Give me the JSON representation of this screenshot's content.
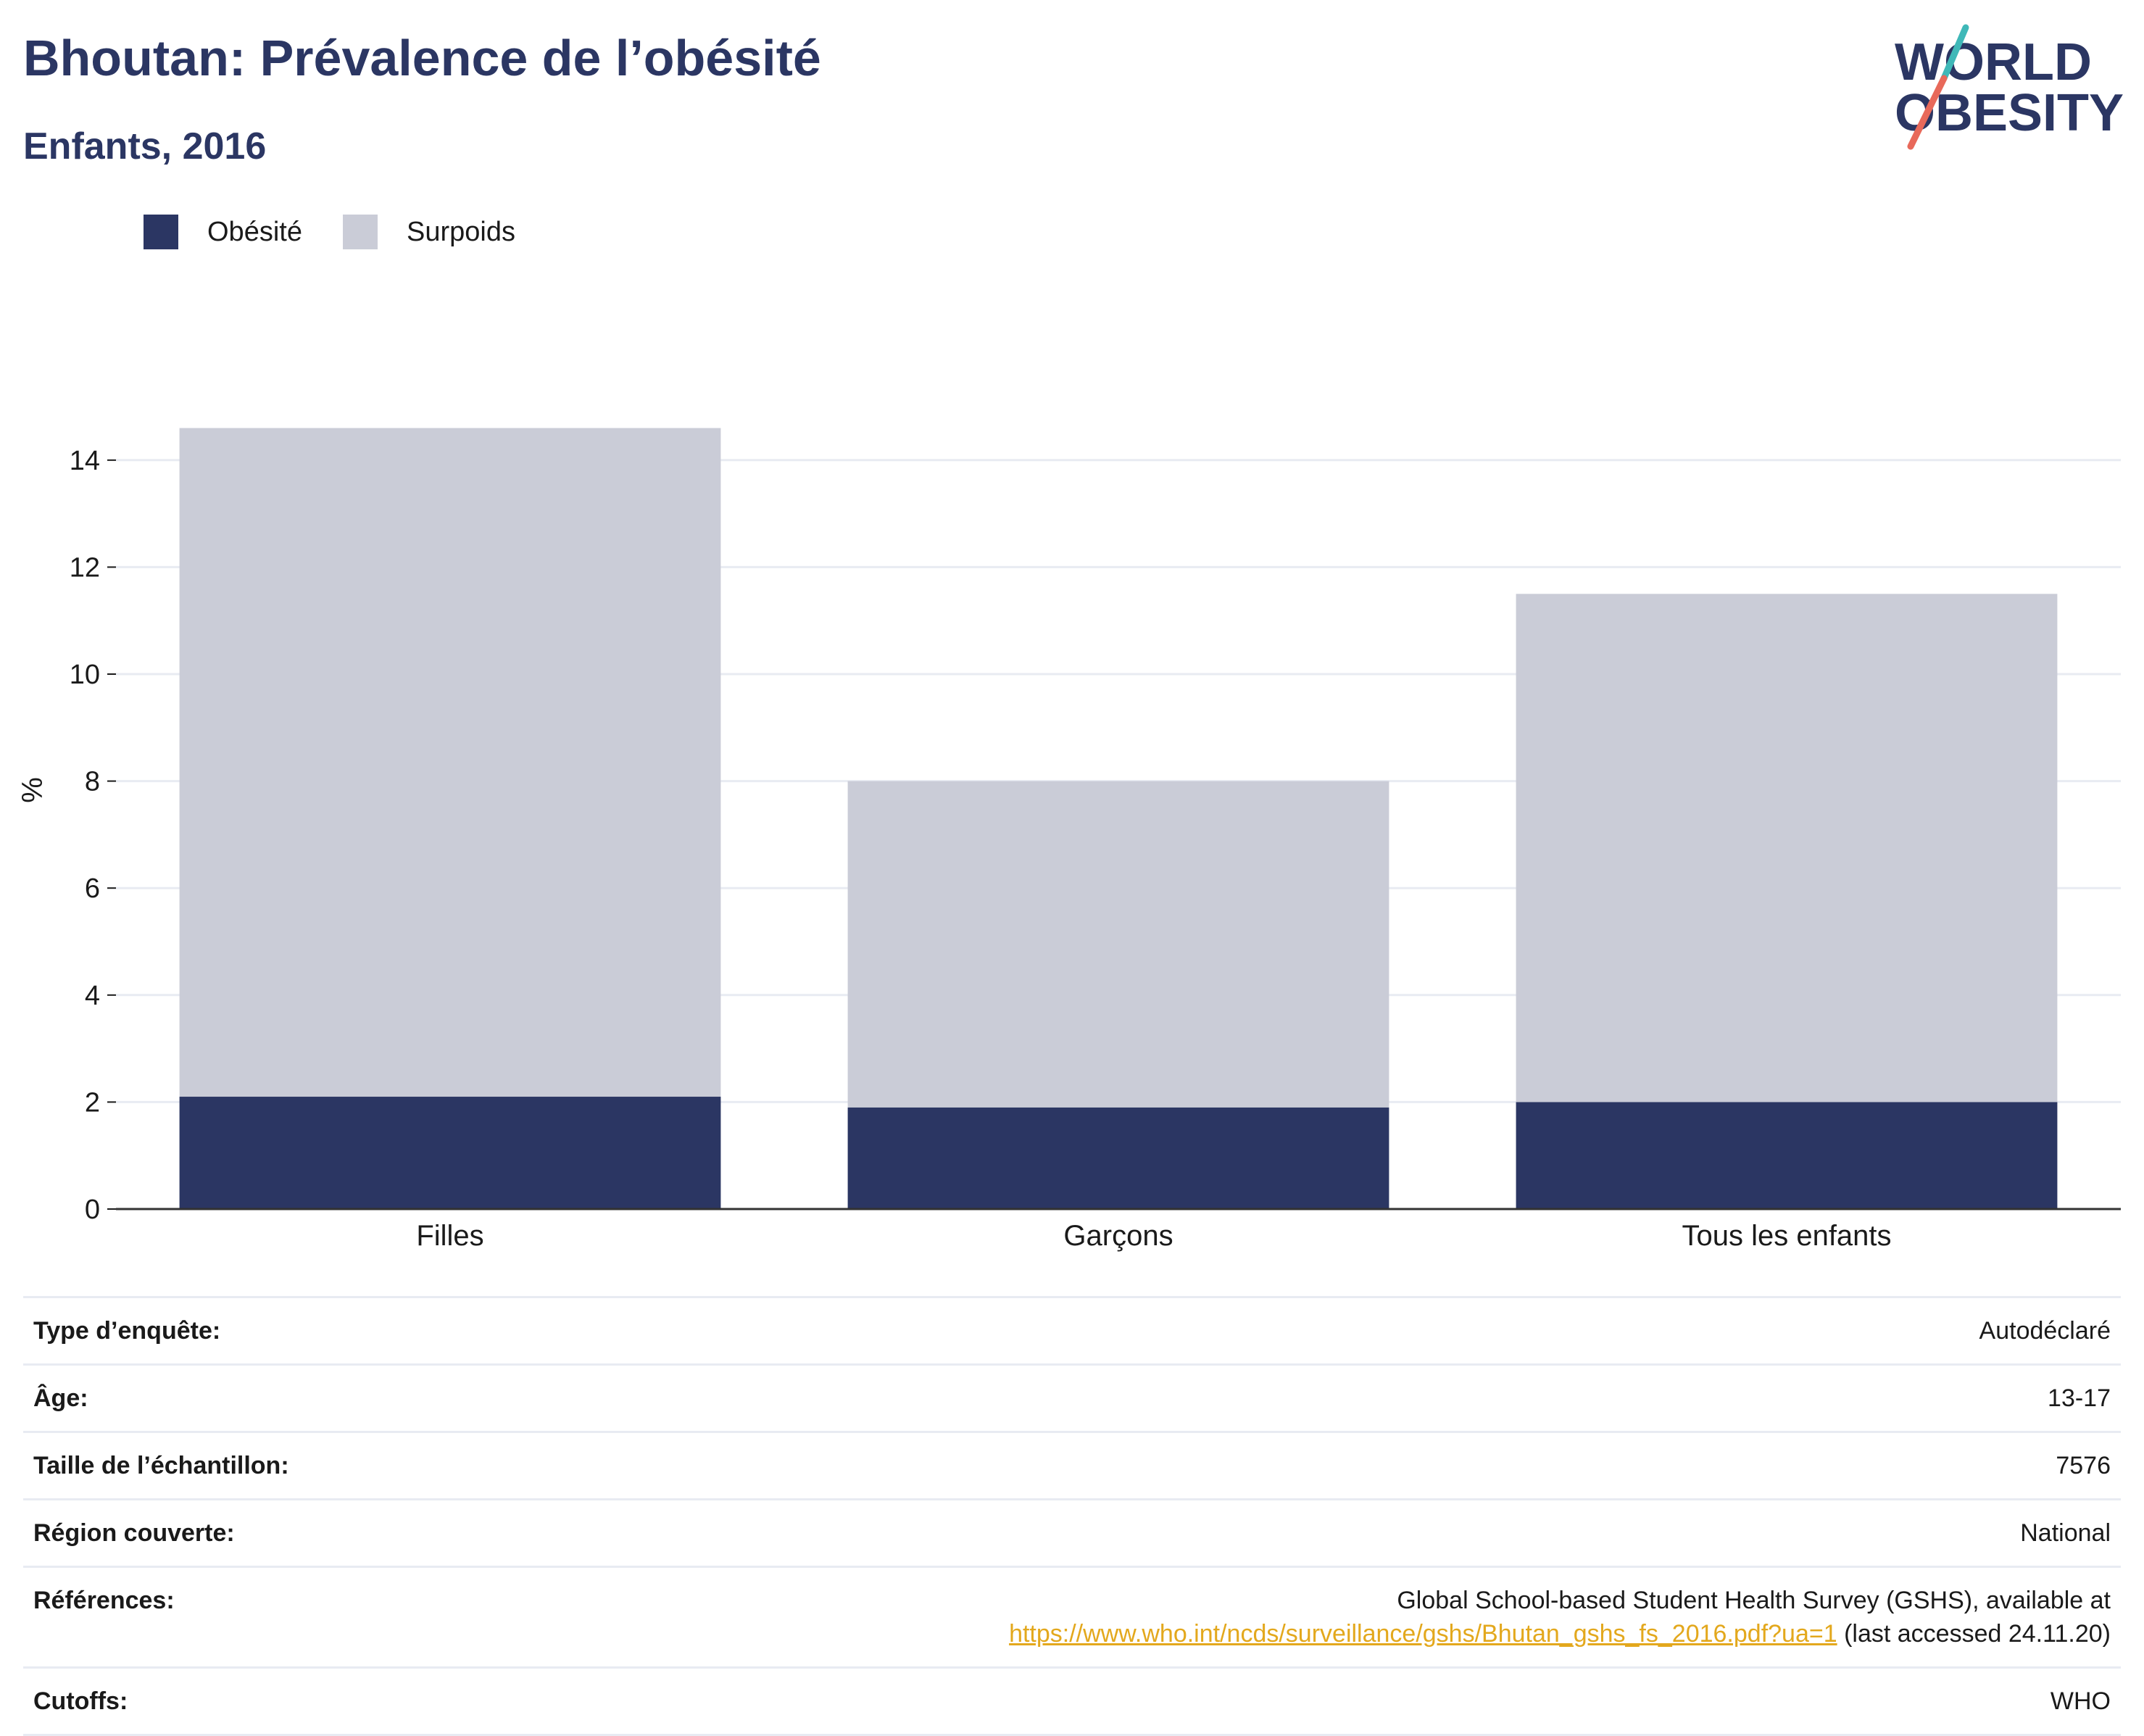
{
  "header": {
    "title": "Bhoutan: Prévalence de l’obésité",
    "subtitle": "Enfants, 2016"
  },
  "logo": {
    "line1": "WORLD",
    "line2": "OBESITY"
  },
  "chart_data": {
    "type": "bar",
    "stacked": true,
    "categories": [
      "Filles",
      "Garçons",
      "Tous les enfants"
    ],
    "series": [
      {
        "name": "Obésité",
        "values": [
          2.1,
          1.9,
          2.0
        ],
        "color": "#2b3663"
      },
      {
        "name": "Surpoids",
        "values": [
          12.5,
          6.1,
          9.5
        ],
        "color": "#caccd7"
      }
    ],
    "ylabel": "%",
    "xlabel": "",
    "ylim": [
      0,
      15
    ],
    "yticks": [
      0,
      2,
      4,
      6,
      8,
      10,
      12,
      14
    ],
    "grid": true,
    "legend_position": "top-left"
  },
  "info": [
    {
      "key": "Type d’enquête:",
      "value": "Autodéclaré"
    },
    {
      "key": "Âge:",
      "value": "13-17"
    },
    {
      "key": "Taille de l’échantillon:",
      "value": "7576"
    },
    {
      "key": "Région couverte:",
      "value": "National"
    }
  ],
  "references": {
    "key": "Références:",
    "line1": "Global School-based Student Health Survey (GSHS), available at",
    "link": "https://www.who.int/ncds/surveillance/gshs/Bhutan_gshs_fs_2016.pdf?ua=1",
    "suffix": " (last accessed 24.11.20)"
  },
  "cutoffs": {
    "key": "Cutoffs:",
    "value": "WHO"
  },
  "colors": {
    "brand": "#2b3663",
    "accent_teal": "#3fb8b8",
    "accent_coral": "#e8695a",
    "link": "#e3a81d"
  }
}
